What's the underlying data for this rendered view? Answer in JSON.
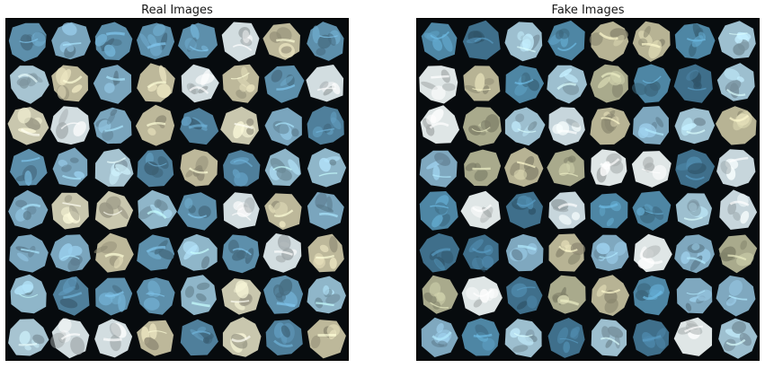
{
  "panels": [
    {
      "title": "Real Images",
      "grid": {
        "rows": 8,
        "cols": 8
      },
      "palette": [
        "#8fb6c9",
        "#5d8fab",
        "#bdb89a",
        "#a7c4d1",
        "#4f7f9b",
        "#c9c7ae",
        "#7aa5bd",
        "#d2dde0"
      ],
      "seed": 7
    },
    {
      "title": "Fake Images",
      "grid": {
        "rows": 8,
        "cols": 8
      },
      "palette": [
        "#9dbfcf",
        "#4e86a4",
        "#b7b394",
        "#c7d6dc",
        "#3f6f8b",
        "#a9aa8c",
        "#7fa8bf",
        "#dfe6e6"
      ],
      "seed": 19
    }
  ]
}
